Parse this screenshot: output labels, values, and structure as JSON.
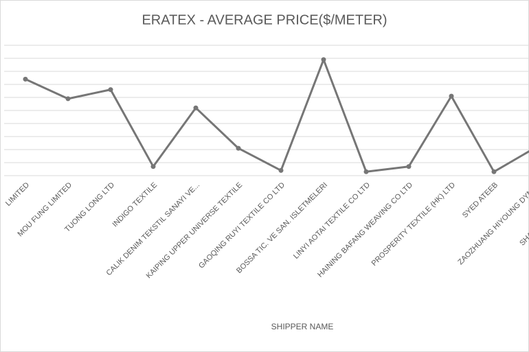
{
  "chart_data": {
    "type": "line",
    "title": "ERATEX - AVERAGE PRICE($/METER)",
    "x_label": "SHIPPER NAME",
    "categories": [
      "LIMITED",
      "MOU FUNG LIMITED",
      "TUONG LONG LTD",
      "INDIGO TEXTILE",
      "CALIK DENIM TEKSTIL SANAYI VE...",
      "KAIPING UPPER UNIVERSE TEXTILE",
      "GAOQING RUYI TEXTILE CO LTD",
      "BOSSA TIC. VE SAN. ISLETMELERI",
      "LINYI AOTAI TEXTILE CO LTD",
      "HAINING BAFANG WEAVING CO LTD",
      "PROSPERITY TEXTILE (HK) LTD",
      "SYED ATEEB",
      "ZAOZHUANG HIYOUNG DYNAS",
      "SHANGHAI FREEDOM T"
    ],
    "values": [
      7.4,
      5.9,
      6.6,
      0.7,
      5.2,
      2.1,
      0.4,
      8.9,
      0.3,
      0.7,
      6.1,
      0.3,
      2.2,
      null
    ],
    "color": "#767676",
    "ylim": [
      0,
      10
    ],
    "yticks": [
      0,
      1,
      2,
      3,
      4,
      5,
      6,
      7,
      8,
      9,
      10
    ],
    "grid": true
  }
}
